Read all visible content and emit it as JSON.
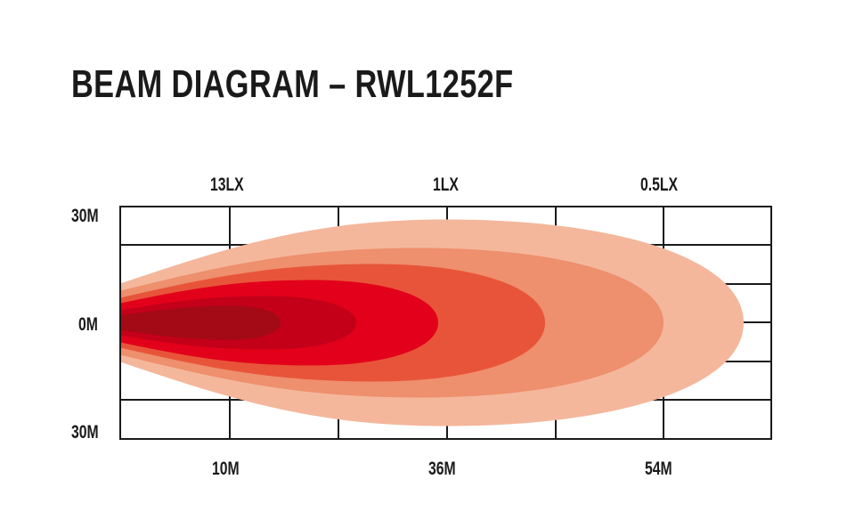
{
  "title": "BEAM DIAGRAM – RWL1252F",
  "top_labels": [
    "13LX",
    "1LX",
    "0.5LX"
  ],
  "bottom_labels": [
    "10M",
    "36M",
    "54M"
  ],
  "left_labels": [
    "30M",
    "0M",
    "30M"
  ],
  "colors": [
    "#f4b79c",
    "#ee8f6d",
    "#e8543a",
    "#e2001a",
    "#c40019",
    "#a30a16"
  ],
  "grid_color": "#1a1a1a"
}
